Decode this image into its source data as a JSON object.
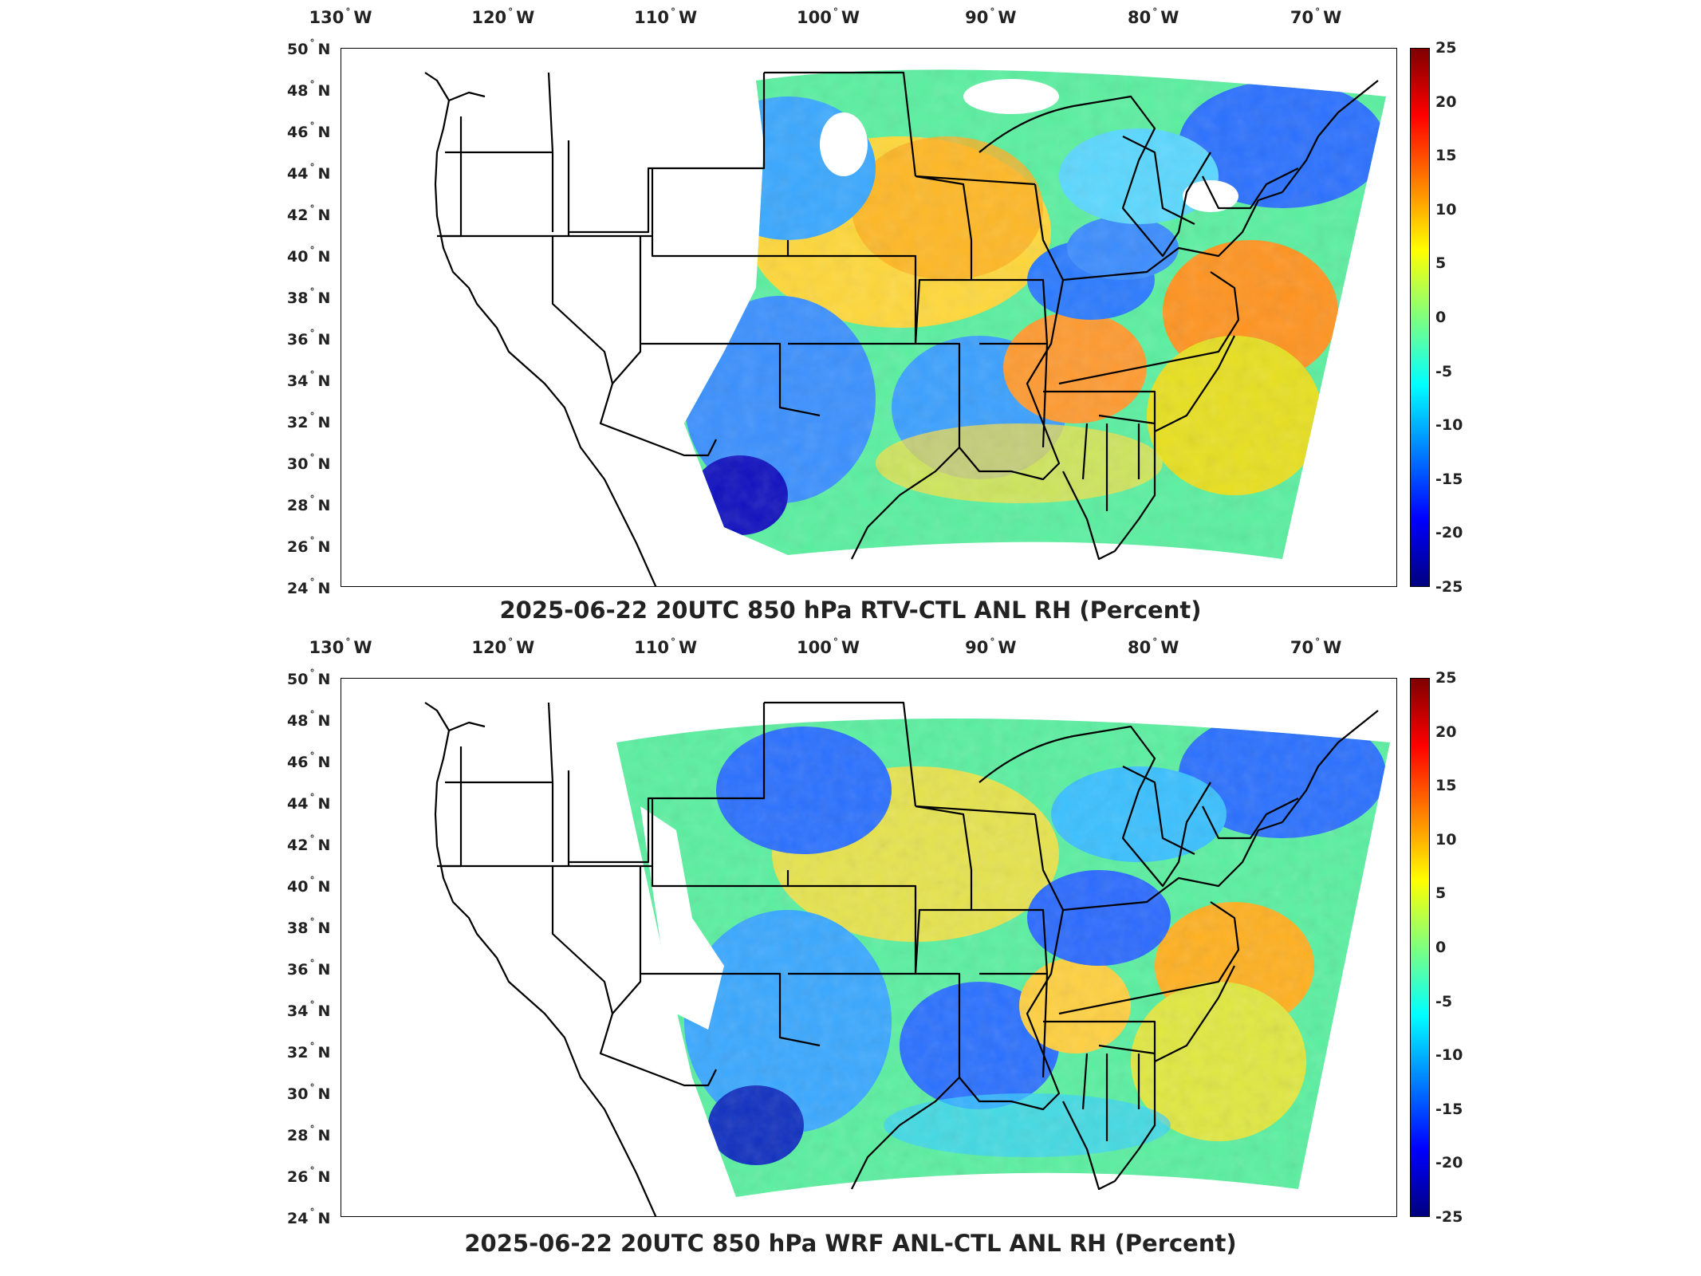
{
  "panels": [
    {
      "id": "top",
      "title": "2025-06-22 20UTC 850 hPa RTV-CTL ANL RH (Percent)"
    },
    {
      "id": "bottom",
      "title": "2025-06-22 20UTC 850 hPa WRF ANL-CTL ANL RH (Percent)"
    }
  ],
  "axes": {
    "lon_ticks": [
      "130",
      "120",
      "110",
      "100",
      "90",
      "80",
      "70"
    ],
    "lon_suffix": "W",
    "lat_ticks": [
      "50",
      "48",
      "46",
      "44",
      "42",
      "40",
      "38",
      "36",
      "34",
      "32",
      "30",
      "28",
      "26",
      "24"
    ],
    "lat_suffix": "N",
    "lon_range": [
      -130,
      -65
    ],
    "lat_range": [
      24,
      50
    ]
  },
  "colorbar": {
    "ticks": [
      "25",
      "20",
      "15",
      "10",
      "5",
      "0",
      "-5",
      "-10",
      "-15",
      "-20",
      "-25"
    ],
    "range": [
      -25,
      25
    ],
    "colormap": "jet"
  },
  "colors": {
    "blue": "#1e64ff",
    "cyan": "#1ed2ff",
    "green": "#7fff7f",
    "yellow": "#ffe000",
    "orange": "#ff8c00",
    "red": "#ff3000",
    "darkblue": "#0000a0"
  }
}
